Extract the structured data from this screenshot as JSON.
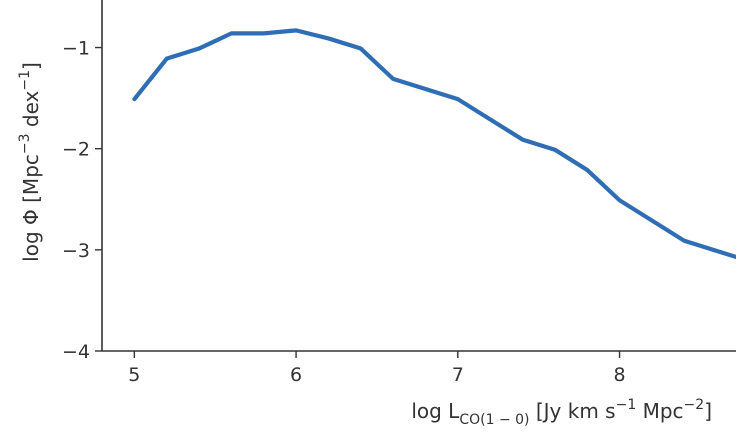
{
  "chart_data": {
    "type": "line",
    "title": "",
    "xlabel": {
      "prefix": "log L",
      "subscript": "CO(1 − 0)",
      "units_a": " [Jy km s",
      "sup_a": "−1",
      "units_b": " Mpc",
      "sup_b": "−2",
      "units_c": "]"
    },
    "ylabel": {
      "prefix": "log Φ [Mpc",
      "sup_a": "−3",
      "mid": " dex",
      "sup_b": "−1",
      "suffix": "]"
    },
    "xlim": [
      4.8,
      8.72
    ],
    "ylim": [
      -4,
      -0.53
    ],
    "xticks": [
      {
        "value": 5,
        "label": "5"
      },
      {
        "value": 6,
        "label": "6"
      },
      {
        "value": 7,
        "label": "7"
      },
      {
        "value": 8,
        "label": "8"
      }
    ],
    "yticks": [
      {
        "value": -1,
        "label": "−1"
      },
      {
        "value": -2,
        "label": "−2"
      },
      {
        "value": -3,
        "label": "−3"
      },
      {
        "value": -4,
        "label": "−4"
      }
    ],
    "grid": false,
    "legend": "none",
    "series": [
      {
        "color": "#2f6db5",
        "x": [
          5.0,
          5.2,
          5.4,
          5.6,
          5.8,
          6.0,
          6.2,
          6.4,
          6.6,
          6.8,
          7.0,
          7.2,
          7.4,
          7.6,
          7.8,
          8.0,
          8.2,
          8.4,
          8.6,
          8.8
        ],
        "y": [
          -1.51,
          -1.11,
          -1.01,
          -0.86,
          -0.86,
          -0.83,
          -0.91,
          -1.01,
          -1.31,
          -1.41,
          -1.51,
          -1.71,
          -1.91,
          -2.01,
          -2.21,
          -2.51,
          -2.71,
          -2.91,
          -3.01,
          -3.11
        ]
      }
    ]
  }
}
